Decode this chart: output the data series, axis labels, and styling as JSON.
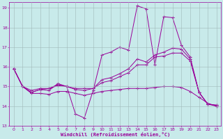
{
  "xlabel": "Windchill (Refroidissement éolien,°C)",
  "xlim": [
    -0.5,
    23.5
  ],
  "ylim": [
    13,
    19.3
  ],
  "yticks": [
    13,
    14,
    15,
    16,
    17,
    18,
    19
  ],
  "xticks": [
    0,
    1,
    2,
    3,
    4,
    5,
    6,
    7,
    8,
    9,
    10,
    11,
    12,
    13,
    14,
    15,
    16,
    17,
    18,
    19,
    20,
    21,
    22,
    23
  ],
  "bg_color": "#c8eaea",
  "line_color": "#990099",
  "grid_color": "#a0b8b8",
  "line1_x": [
    0,
    1,
    2,
    3,
    4,
    5,
    6,
    7,
    8,
    9,
    10,
    11,
    12,
    13,
    14,
    15,
    16,
    17,
    18,
    19,
    20,
    21,
    22,
    23
  ],
  "line1_y": [
    15.9,
    15.0,
    14.7,
    14.85,
    14.8,
    15.15,
    15.0,
    13.6,
    13.4,
    14.8,
    16.6,
    16.75,
    17.0,
    16.85,
    19.1,
    18.95,
    16.1,
    18.55,
    18.5,
    17.1,
    16.5,
    14.7,
    14.1,
    14.0
  ],
  "line2_x": [
    0,
    1,
    2,
    3,
    4,
    5,
    6,
    7,
    8,
    9,
    10,
    11,
    12,
    13,
    14,
    15,
    16,
    17,
    18,
    19,
    20,
    21,
    22,
    23
  ],
  "line2_y": [
    15.9,
    15.0,
    14.7,
    14.85,
    14.9,
    15.1,
    15.0,
    14.85,
    14.8,
    14.9,
    15.35,
    15.45,
    15.65,
    15.9,
    16.4,
    16.25,
    16.6,
    16.75,
    16.95,
    16.9,
    16.4,
    14.7,
    14.1,
    14.05
  ],
  "line3_x": [
    0,
    1,
    2,
    3,
    4,
    5,
    6,
    7,
    8,
    9,
    10,
    11,
    12,
    13,
    14,
    15,
    16,
    17,
    18,
    19,
    20,
    21,
    22,
    23
  ],
  "line3_y": [
    15.9,
    15.0,
    14.8,
    14.9,
    14.9,
    15.05,
    15.0,
    14.9,
    14.9,
    14.9,
    15.2,
    15.3,
    15.5,
    15.7,
    16.1,
    16.1,
    16.5,
    16.55,
    16.7,
    16.7,
    16.3,
    14.7,
    14.1,
    14.05
  ],
  "line4_x": [
    0,
    1,
    2,
    3,
    4,
    5,
    6,
    7,
    8,
    9,
    10,
    11,
    12,
    13,
    14,
    15,
    16,
    17,
    18,
    19,
    20,
    21,
    22,
    23
  ],
  "line4_y": [
    15.9,
    15.0,
    14.65,
    14.65,
    14.6,
    14.75,
    14.75,
    14.65,
    14.55,
    14.65,
    14.75,
    14.8,
    14.85,
    14.9,
    14.9,
    14.9,
    14.95,
    15.0,
    15.0,
    14.95,
    14.75,
    14.45,
    14.15,
    14.0
  ]
}
